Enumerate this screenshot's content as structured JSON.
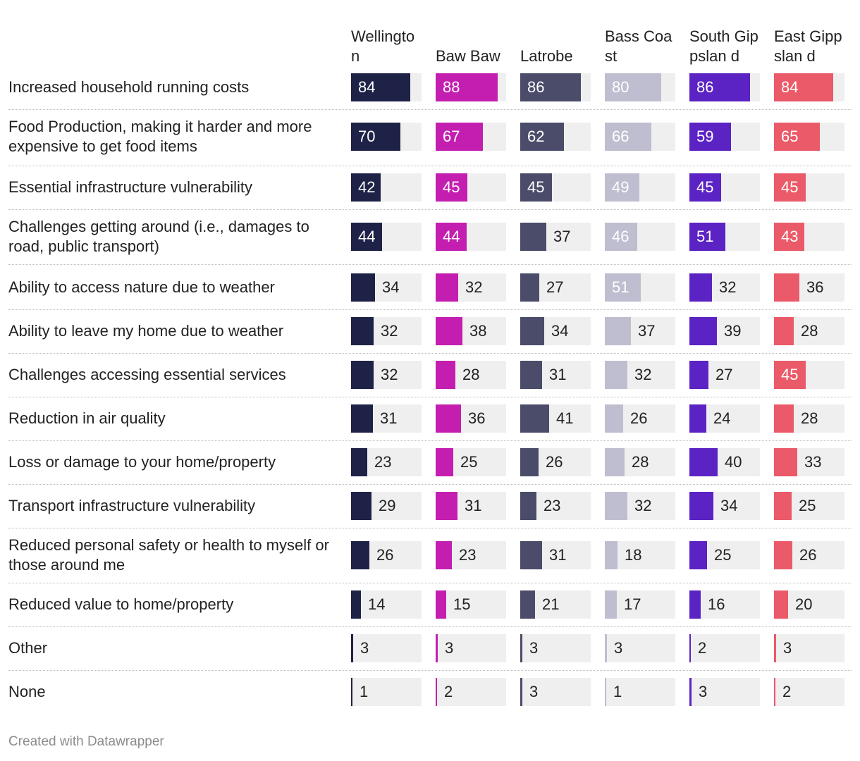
{
  "chart_data": {
    "type": "bar",
    "layout": "small-multiples-horizontal",
    "xlim": [
      0,
      100
    ],
    "regions": [
      {
        "name": "Wellington",
        "header": "Wellingto n",
        "color": "#1f2247"
      },
      {
        "name": "Baw Baw",
        "header": "Baw Baw",
        "color": "#c41eb0"
      },
      {
        "name": "Latrobe",
        "header": "Latrobe",
        "color": "#4a4c6a"
      },
      {
        "name": "Bass Coast",
        "header": "Bass Coast",
        "color": "#bfbed0"
      },
      {
        "name": "South Gippsland",
        "header": "South Gippslan d",
        "color": "#5b22c4"
      },
      {
        "name": "East Gippsland",
        "header": "East Gippslan d",
        "color": "#ea5a68"
      }
    ],
    "categories": [
      "Increased household running costs",
      "Food Production, making it harder and more expensive to get food items",
      "Essential infrastructure vulnerability",
      "Challenges getting around (i.e., damages to road, public transport)",
      "Ability to access nature due to weather",
      "Ability to leave my home due to weather",
      "Challenges accessing essential services",
      "Reduction in air quality",
      "Loss or damage to your home/property",
      "Transport infrastructure vulnerability",
      "Reduced personal safety or health to myself or those around me",
      "Reduced value to home/property",
      "Other",
      "None"
    ],
    "series": [
      {
        "name": "Wellington",
        "values": [
          84,
          70,
          42,
          44,
          34,
          32,
          32,
          31,
          23,
          29,
          26,
          14,
          3,
          1
        ]
      },
      {
        "name": "Baw Baw",
        "values": [
          88,
          67,
          45,
          44,
          32,
          38,
          28,
          36,
          25,
          31,
          23,
          15,
          3,
          2
        ]
      },
      {
        "name": "Latrobe",
        "values": [
          86,
          62,
          45,
          37,
          27,
          34,
          31,
          41,
          26,
          23,
          31,
          21,
          3,
          3
        ]
      },
      {
        "name": "Bass Coast",
        "values": [
          80,
          66,
          49,
          46,
          51,
          37,
          32,
          26,
          28,
          32,
          18,
          17,
          3,
          1
        ]
      },
      {
        "name": "South Gippsland",
        "values": [
          86,
          59,
          45,
          51,
          32,
          39,
          27,
          24,
          40,
          34,
          25,
          16,
          2,
          3
        ]
      },
      {
        "name": "East Gippsland",
        "values": [
          84,
          65,
          45,
          43,
          36,
          28,
          45,
          28,
          33,
          25,
          26,
          20,
          3,
          2
        ]
      }
    ]
  },
  "footer": {
    "credit": "Created with Datawrapper"
  }
}
